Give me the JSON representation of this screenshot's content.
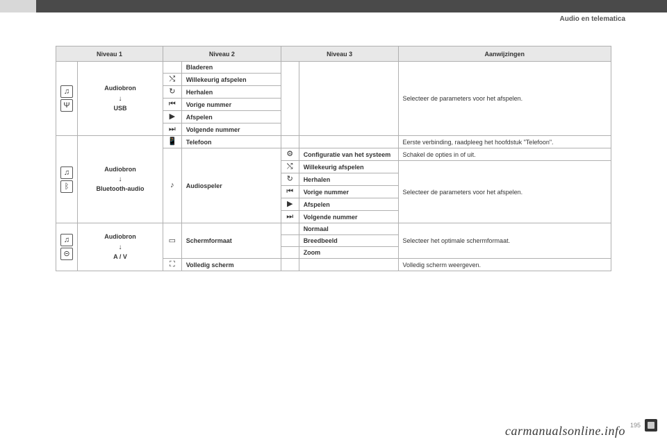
{
  "header": {
    "section_title": "Audio en telematica"
  },
  "table": {
    "headers": {
      "n1": "Niveau 1",
      "n2": "Niveau 2",
      "n3": "Niveau 3",
      "aan": "Aanwijzingen"
    },
    "usb": {
      "label_top": "Audiobron",
      "label_bottom": "USB",
      "rows": [
        {
          "icon": "",
          "n2": "Bladeren"
        },
        {
          "icon": "⤭",
          "n2": "Willekeurig afspelen"
        },
        {
          "icon": "↻",
          "n2": "Herhalen"
        },
        {
          "icon": "⏮",
          "n2": "Vorige nummer"
        },
        {
          "icon": "▶",
          "n2": "Afspelen"
        },
        {
          "icon": "⏭",
          "n2": "Volgende nummer"
        }
      ],
      "aan": "Selecteer de parameters voor het afspelen."
    },
    "bt": {
      "label_top": "Audiobron",
      "label_bottom": "Bluetooth-audio",
      "tel": {
        "icon": "📱",
        "n2": "Telefoon",
        "aan": "Eerste verbinding, raadpleeg het hoofdstuk \"Telefoon\"."
      },
      "audiospeler": {
        "icon": "♪",
        "label": "Audiospeler",
        "rows": [
          {
            "icon": "⚙",
            "n3": "Configuratie van het systeem",
            "aan": "Schakel de opties in of uit."
          },
          {
            "icon": "⤭",
            "n3": "Willekeurig afspelen"
          },
          {
            "icon": "↻",
            "n3": "Herhalen"
          },
          {
            "icon": "⏮",
            "n3": "Vorige nummer"
          },
          {
            "icon": "▶",
            "n3": "Afspelen"
          },
          {
            "icon": "⏭",
            "n3": "Volgende nummer"
          }
        ],
        "aan_group": "Selecteer de parameters voor het afspelen."
      }
    },
    "av": {
      "label_top": "Audiobron",
      "label_bottom": "A / V",
      "scherm": {
        "icon": "▭",
        "label": "Schermformaat",
        "rows": [
          {
            "n3": "Normaal"
          },
          {
            "n3": "Breedbeeld"
          },
          {
            "n3": "Zoom"
          }
        ],
        "aan": "Selecteer het optimale schermformaat."
      },
      "volledig": {
        "icon": "⛶",
        "n2": "Volledig scherm",
        "aan": "Volledig scherm weergeven."
      }
    }
  },
  "footer": {
    "watermark": "carmanualsonline.info",
    "page": "195"
  },
  "icons": {
    "music": "♫",
    "usb": "�река",
    "bt": "ᛒ",
    "jack": "⊝"
  }
}
